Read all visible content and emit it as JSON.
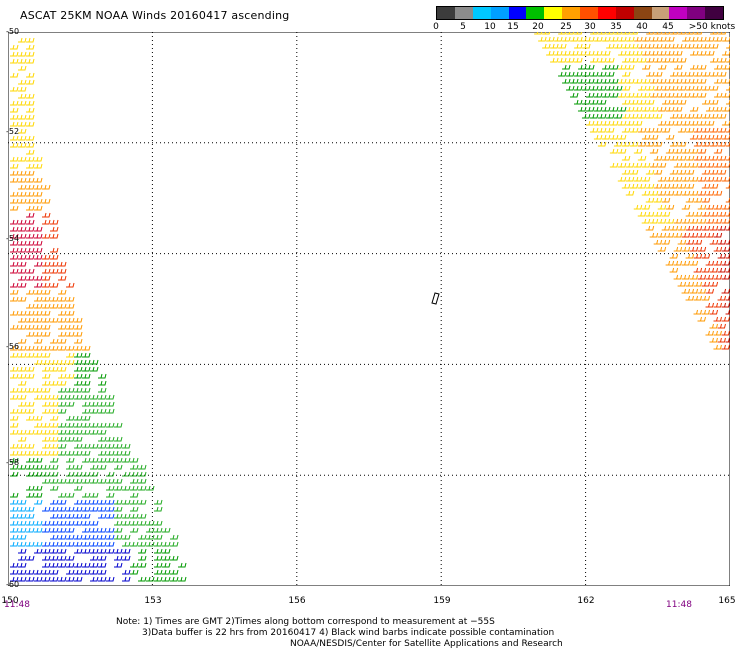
{
  "title": "ASCAT 25KM NOAA Winds 20160417 ascending",
  "legend": {
    "labels": [
      "0",
      "5",
      "10",
      "15",
      "20",
      "25",
      "30",
      "35",
      "40",
      "45",
      ">50 knots"
    ],
    "colors": [
      "#3c3c3c",
      "#8c8c8c",
      "#00c8ff",
      "#00a0ff",
      "#0000ff",
      "#00c000",
      "#ffff00",
      "#ffa000",
      "#ff5000",
      "#ff0000",
      "#c00000",
      "#8b4513",
      "#c8a078",
      "#c000c0",
      "#800080",
      "#400040"
    ]
  },
  "axes": {
    "lon_labels": [
      "150",
      "153",
      "156",
      "159",
      "162",
      "165"
    ],
    "lat_labels": [
      "-50",
      "-52",
      "-54",
      "-56",
      "-58",
      "-60"
    ],
    "lon_range": [
      150,
      165
    ],
    "lat_range": [
      -50,
      -60
    ],
    "grid": "dotted"
  },
  "times": {
    "left": "11:48",
    "right": "11:48"
  },
  "notes": {
    "line1": "Note: 1) Times are GMT 2)Times along bottom correspond to measurement at −55S",
    "line2": "3)Data buffer is 22 hrs from 20160417 4) Black wind barbs indicate possible contamination",
    "line3": "NOAA/NESDIS/Center for Satellite Applications and Research"
  },
  "swaths": {
    "right": {
      "colors": [
        "#ffd700",
        "#ff9900",
        "#ff6600",
        "#ee3300",
        "#cc1100",
        "#009900"
      ]
    },
    "left": {
      "colors": [
        "#ffd700",
        "#ff9900",
        "#ee3300",
        "#cc0033",
        "#009900",
        "#22aa22",
        "#0044ff",
        "#0000cc",
        "#00aaff"
      ]
    }
  }
}
